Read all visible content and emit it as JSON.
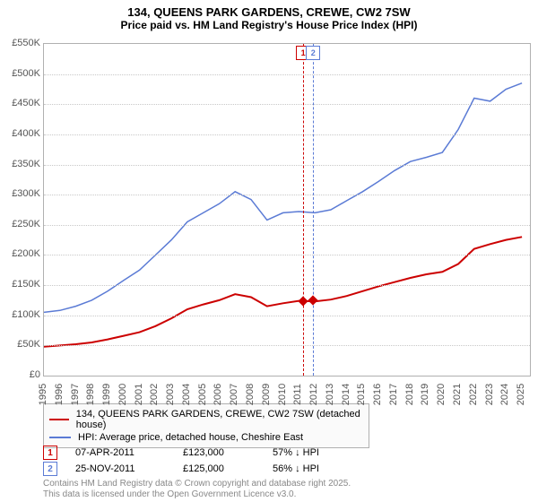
{
  "title_line1": "134, QUEENS PARK GARDENS, CREWE, CW2 7SW",
  "title_line2": "Price paid vs. HM Land Registry's House Price Index (HPI)",
  "chart": {
    "type": "line",
    "background_color": "#ffffff",
    "grid_color": "#c8c8c8",
    "border_color": "#b0b0b0",
    "x_years": [
      1995,
      1996,
      1997,
      1998,
      1999,
      2000,
      2001,
      2002,
      2003,
      2004,
      2005,
      2006,
      2007,
      2008,
      2009,
      2010,
      2011,
      2012,
      2013,
      2014,
      2015,
      2016,
      2017,
      2018,
      2019,
      2020,
      2021,
      2022,
      2023,
      2024,
      2025
    ],
    "xlim": [
      1995,
      2025.5
    ],
    "ylim": [
      0,
      550
    ],
    "ytick_step": 50,
    "y_unit": "K",
    "y_prefix": "£",
    "label_fontsize": 11,
    "series": [
      {
        "name": "price_paid",
        "label": "134, QUEENS PARK GARDENS, CREWE, CW2 7SW (detached house)",
        "color": "#cc0000",
        "line_width": 2,
        "data": [
          [
            1995,
            48
          ],
          [
            1996,
            50
          ],
          [
            1997,
            52
          ],
          [
            1998,
            55
          ],
          [
            1999,
            60
          ],
          [
            2000,
            66
          ],
          [
            2001,
            72
          ],
          [
            2002,
            82
          ],
          [
            2003,
            95
          ],
          [
            2004,
            110
          ],
          [
            2005,
            118
          ],
          [
            2006,
            125
          ],
          [
            2007,
            135
          ],
          [
            2008,
            130
          ],
          [
            2009,
            115
          ],
          [
            2010,
            120
          ],
          [
            2011,
            124
          ],
          [
            2012,
            123
          ],
          [
            2013,
            126
          ],
          [
            2014,
            132
          ],
          [
            2015,
            140
          ],
          [
            2016,
            148
          ],
          [
            2017,
            155
          ],
          [
            2018,
            162
          ],
          [
            2019,
            168
          ],
          [
            2020,
            172
          ],
          [
            2021,
            185
          ],
          [
            2022,
            210
          ],
          [
            2023,
            218
          ],
          [
            2024,
            225
          ],
          [
            2025,
            230
          ]
        ]
      },
      {
        "name": "hpi",
        "label": "HPI: Average price, detached house, Cheshire East",
        "color": "#5b7bd5",
        "line_width": 1.5,
        "data": [
          [
            1995,
            105
          ],
          [
            1996,
            108
          ],
          [
            1997,
            115
          ],
          [
            1998,
            125
          ],
          [
            1999,
            140
          ],
          [
            2000,
            158
          ],
          [
            2001,
            175
          ],
          [
            2002,
            200
          ],
          [
            2003,
            225
          ],
          [
            2004,
            255
          ],
          [
            2005,
            270
          ],
          [
            2006,
            285
          ],
          [
            2007,
            305
          ],
          [
            2008,
            292
          ],
          [
            2009,
            258
          ],
          [
            2010,
            270
          ],
          [
            2011,
            272
          ],
          [
            2012,
            270
          ],
          [
            2013,
            275
          ],
          [
            2014,
            290
          ],
          [
            2015,
            305
          ],
          [
            2016,
            322
          ],
          [
            2017,
            340
          ],
          [
            2018,
            355
          ],
          [
            2019,
            362
          ],
          [
            2020,
            370
          ],
          [
            2021,
            408
          ],
          [
            2022,
            460
          ],
          [
            2023,
            455
          ],
          [
            2024,
            475
          ],
          [
            2025,
            485
          ]
        ]
      }
    ],
    "sale_markers": [
      {
        "id": "1",
        "x": 2011.27,
        "color": "#cc0000"
      },
      {
        "id": "2",
        "x": 2011.9,
        "color": "#5b7bd5"
      }
    ],
    "sale_points": [
      {
        "x": 2011.27,
        "y": 123,
        "color": "#cc0000"
      },
      {
        "x": 2011.9,
        "y": 125,
        "color": "#cc0000"
      }
    ]
  },
  "legend": {
    "items": [
      {
        "color": "#cc0000",
        "width": 2,
        "label": "134, QUEENS PARK GARDENS, CREWE, CW2 7SW (detached house)"
      },
      {
        "color": "#5b7bd5",
        "width": 1.5,
        "label": "HPI: Average price, detached house, Cheshire East"
      }
    ]
  },
  "sales_table": {
    "rows": [
      {
        "marker": "1",
        "marker_color": "#cc0000",
        "date": "07-APR-2011",
        "price": "£123,000",
        "delta": "57% ↓ HPI"
      },
      {
        "marker": "2",
        "marker_color": "#5b7bd5",
        "date": "25-NOV-2011",
        "price": "£125,000",
        "delta": "56% ↓ HPI"
      }
    ]
  },
  "footer_line1": "Contains HM Land Registry data © Crown copyright and database right 2025.",
  "footer_line2": "This data is licensed under the Open Government Licence v3.0."
}
